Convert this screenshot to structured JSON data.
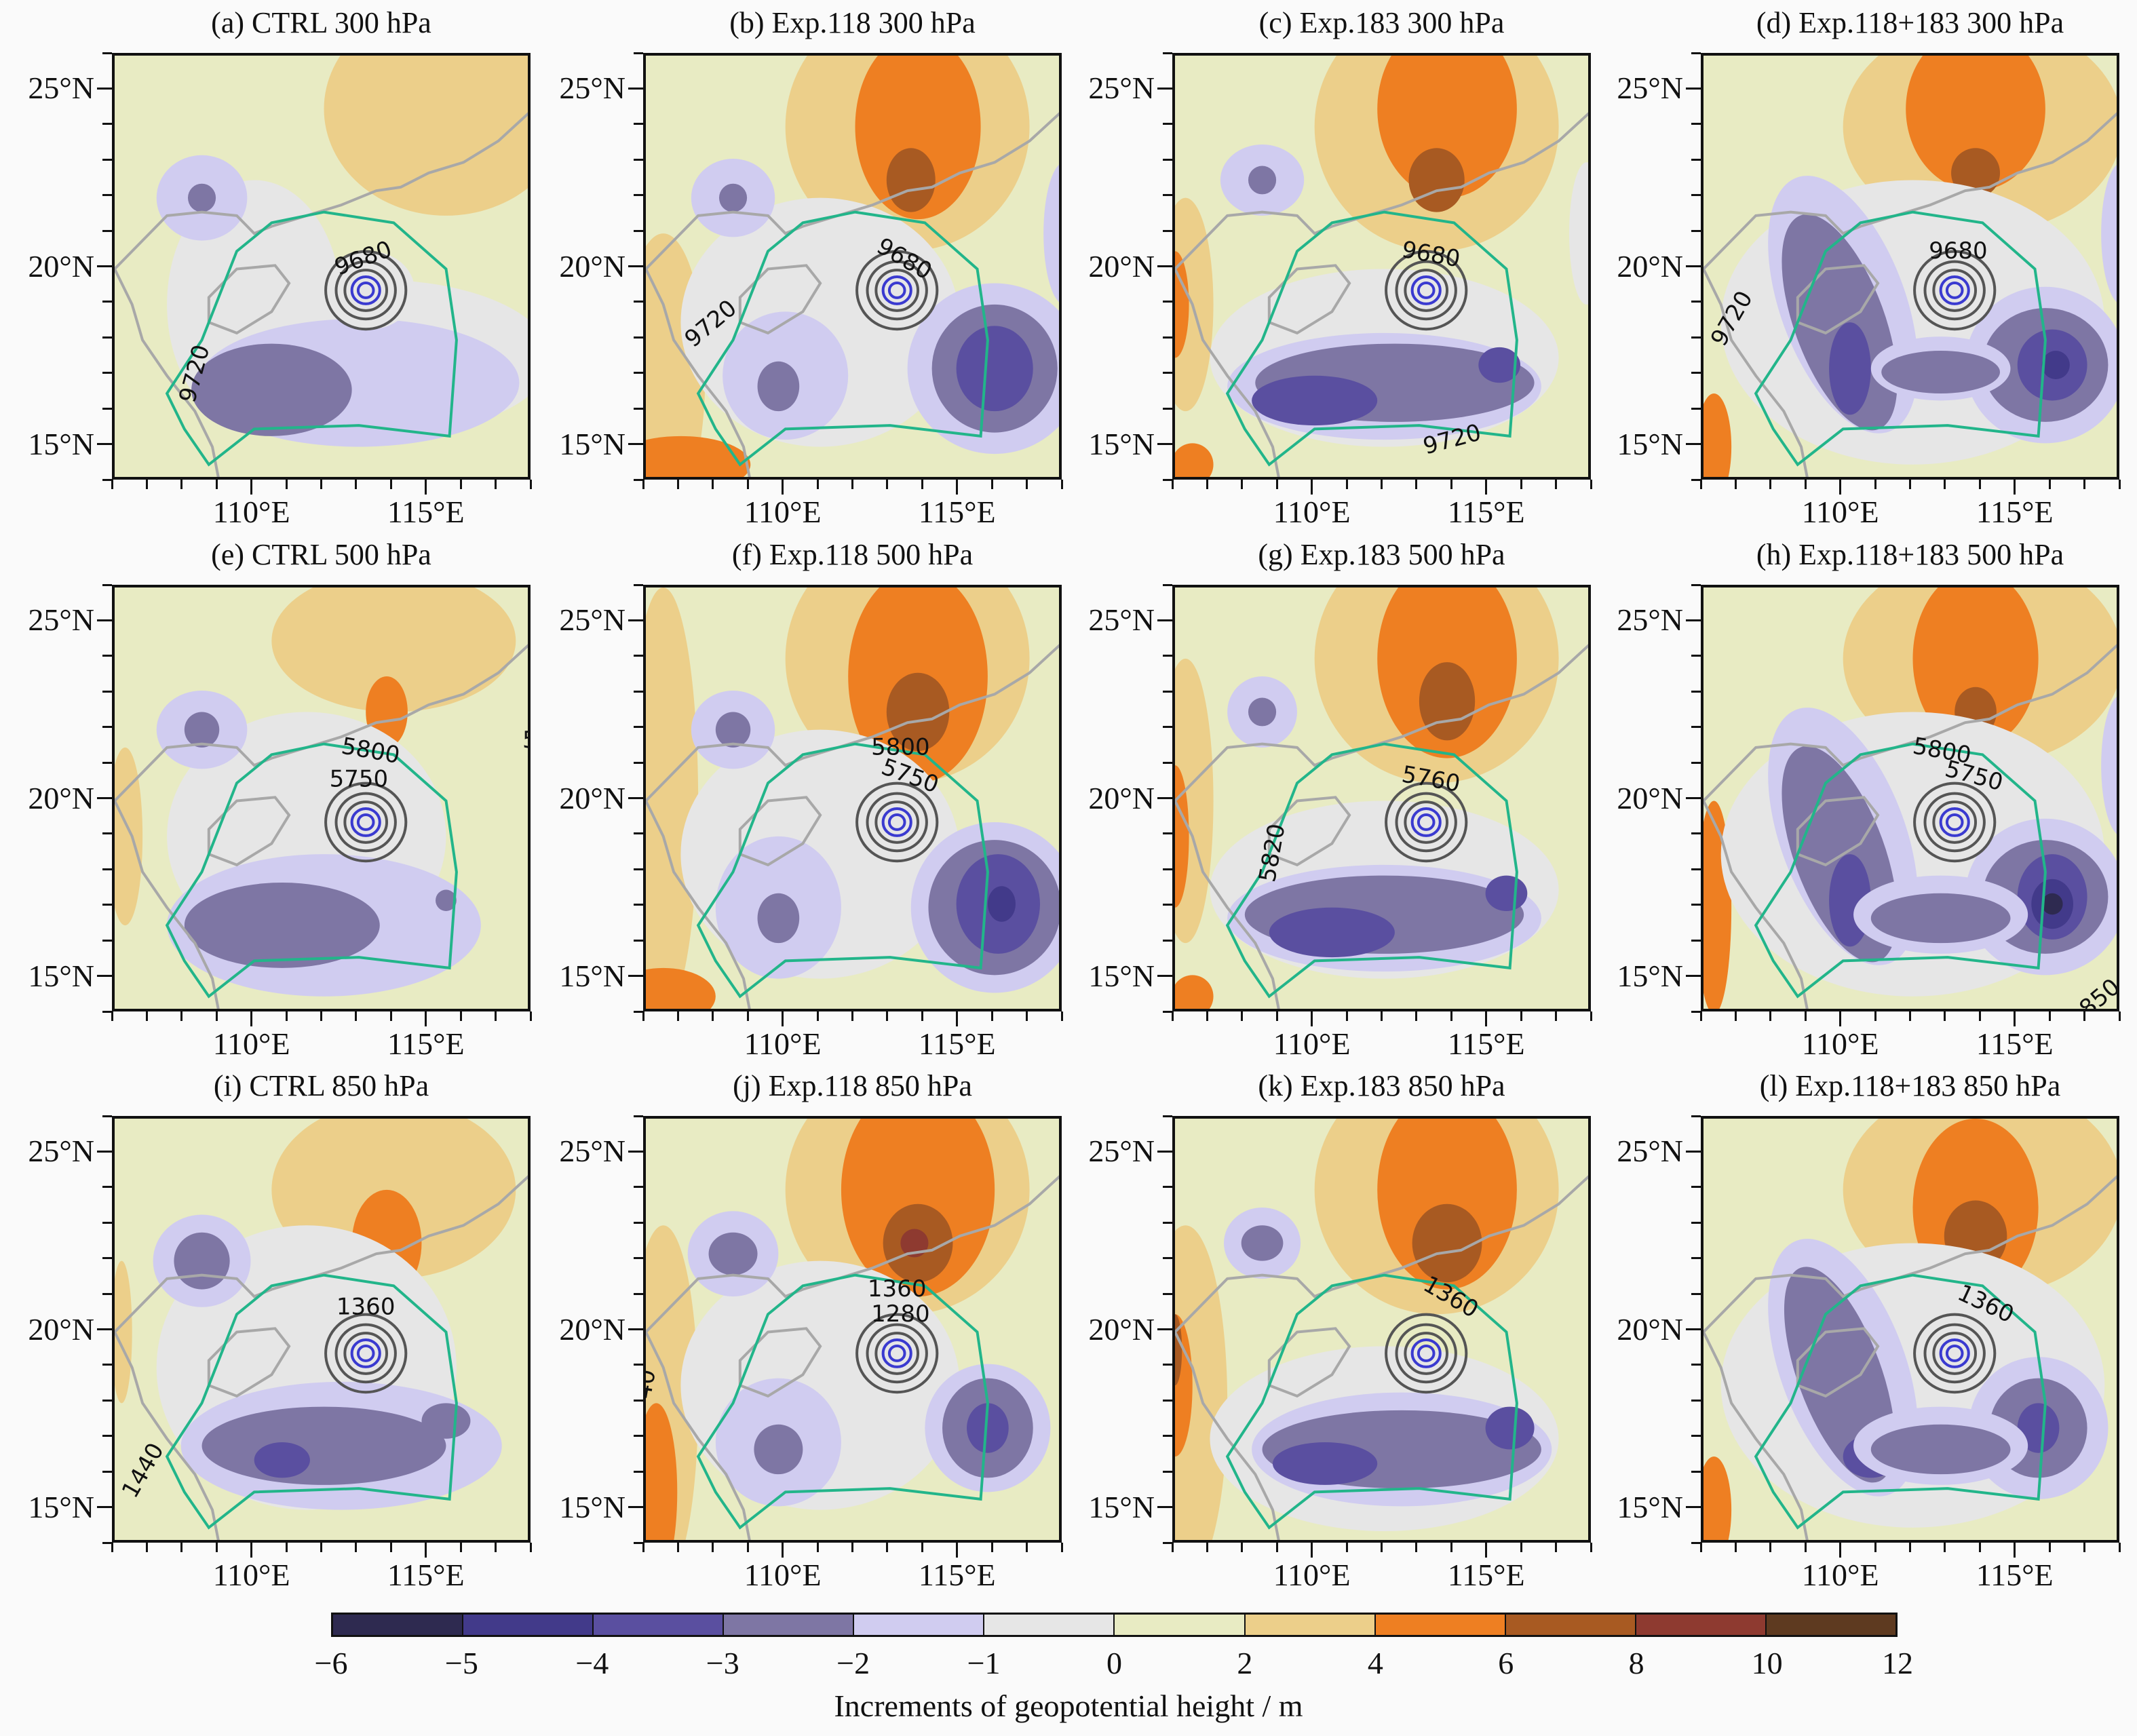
{
  "figure": {
    "panels": [
      {
        "title": "(a) CTRL 300 hPa",
        "contour_labels": [
          "9680",
          "9720"
        ]
      },
      {
        "title": "(b) Exp.118 300 hPa",
        "contour_labels": [
          "9680",
          "9720"
        ]
      },
      {
        "title": "(c) Exp.183 300 hPa",
        "contour_labels": [
          "9680",
          "9720"
        ]
      },
      {
        "title": "(d) Exp.118+183 300 hPa",
        "contour_labels": [
          "9680",
          "9720"
        ]
      },
      {
        "title": "(e) CTRL 500 hPa",
        "contour_labels": [
          "5800",
          "5750",
          "5"
        ]
      },
      {
        "title": "(f) Exp.118 500 hPa",
        "contour_labels": [
          "5800",
          "5750"
        ]
      },
      {
        "title": "(g) Exp.183 500 hPa",
        "contour_labels": [
          "5760",
          "5820"
        ]
      },
      {
        "title": "(h) Exp.118+183 500 hPa",
        "contour_labels": [
          "5800",
          "5750",
          "850"
        ]
      },
      {
        "title": "(i) CTRL 850 hPa",
        "contour_labels": [
          "1360",
          "1440"
        ]
      },
      {
        "title": "(j) Exp.118 850 hPa",
        "contour_labels": [
          "1360",
          "1280",
          "40"
        ]
      },
      {
        "title": "(k) Exp.183 850 hPa",
        "contour_labels": [
          "1360"
        ]
      },
      {
        "title": "(l) Exp.118+183 850 hPa",
        "contour_labels": [
          "1360"
        ]
      }
    ],
    "axes": {
      "lon_range": [
        106,
        118
      ],
      "lat_range": [
        14,
        26
      ],
      "lon_ticks": [
        {
          "value": 110,
          "label": "110°E"
        },
        {
          "value": 115,
          "label": "115°E"
        }
      ],
      "lat_ticks": [
        {
          "value": 25,
          "label": "25°N"
        },
        {
          "value": 20,
          "label": "20°N"
        },
        {
          "value": 15,
          "label": "15°N"
        }
      ]
    },
    "colorbar": {
      "title": "Increments of geopotential height / m",
      "labels": [
        "−6",
        "−5",
        "−4",
        "−3",
        "−2",
        "−1",
        "0",
        "2",
        "4",
        "6",
        "8",
        "10",
        "12"
      ],
      "colors": [
        "#2e2a50",
        "#423a8a",
        "#5a4fa0",
        "#7e76a4",
        "#d0ccf0",
        "#e6e6e6",
        "#e8ebc3",
        "#eccf8a",
        "#ee7f22",
        "#a85a22",
        "#8e3a30",
        "#5e3a20"
      ]
    },
    "line_colors": {
      "height_contour": "#555555",
      "cyclone_core": "#3a3ad0",
      "coastline": "#a8a8a8",
      "green_contour": "#22b58a"
    }
  }
}
